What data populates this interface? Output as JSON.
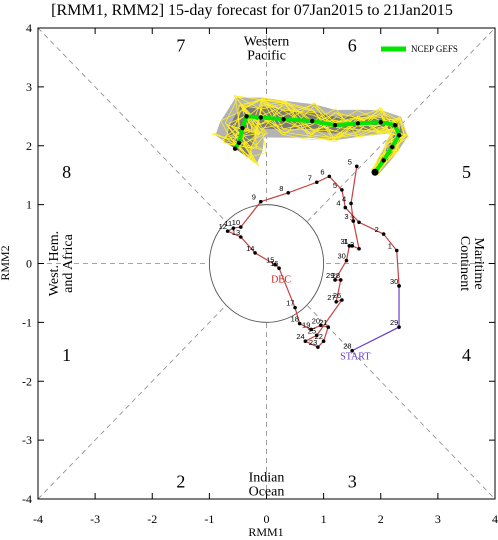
{
  "chart_data": {
    "type": "scatter",
    "title": "[RMM1, RMM2] 15-day forecast for 07Jan2015 to 21Jan2015",
    "xlabel": "RMM1",
    "ylabel": "RMM2",
    "xlim": [
      -4,
      4
    ],
    "ylim": [
      -4,
      4
    ],
    "xticks": [
      "-4",
      "-3",
      "-2",
      "-1",
      "0",
      "1",
      "2",
      "3",
      "4"
    ],
    "yticks": [
      "-4",
      "-3",
      "-2",
      "-1",
      "0",
      "1",
      "2",
      "3",
      "4"
    ],
    "grid": false,
    "legend": {
      "placement": "top-right",
      "entries": [
        "NCEP GEFS"
      ]
    },
    "phase_numbers": [
      {
        "label": "1",
        "x": -3.5,
        "y": -1.55
      },
      {
        "label": "2",
        "x": -1.5,
        "y": -3.7
      },
      {
        "label": "3",
        "x": 1.5,
        "y": -3.7
      },
      {
        "label": "4",
        "x": 3.5,
        "y": -1.55
      },
      {
        "label": "5",
        "x": 3.5,
        "y": 1.55
      },
      {
        "label": "6",
        "x": 1.5,
        "y": 3.7
      },
      {
        "label": "7",
        "x": -1.5,
        "y": 3.7
      },
      {
        "label": "8",
        "x": -3.5,
        "y": 1.55
      }
    ],
    "region_labels": [
      {
        "lines": [
          "Western",
          "Pacific"
        ],
        "x": 0,
        "y": 3.65,
        "rotate": 0
      },
      {
        "lines": [
          "Indian",
          "Ocean"
        ],
        "x": 0,
        "y": -3.75,
        "rotate": 0
      },
      {
        "lines": [
          "West. Hem.",
          "and Africa"
        ],
        "x": -3.6,
        "y": 0,
        "rotate": -90
      },
      {
        "lines": [
          "Maritime",
          "Continent"
        ],
        "x": 3.6,
        "y": 0,
        "rotate": 90
      }
    ],
    "observed_labels": {
      "start": "START",
      "dec": "DEC"
    },
    "colors": {
      "observed_purple": "#6a3dc8",
      "observed_red": "#c84040",
      "forecast_mean": "#00e600",
      "members": "#ffee22",
      "spread_outer": "#b3b3b3",
      "spread_inner": "#7a7a7a",
      "start_label": "#6a3dc8",
      "dec_label": "#cc2222"
    },
    "observed_purple": [
      {
        "label": "28",
        "x": 1.5,
        "y": -1.48
      },
      {
        "label": "29",
        "x": 2.32,
        "y": -1.08
      },
      {
        "label": "30",
        "x": 2.32,
        "y": -0.38
      }
    ],
    "observed_red": [
      {
        "label": "30",
        "x": 2.32,
        "y": -0.38
      },
      {
        "label": "1",
        "x": 2.28,
        "y": 0.22
      },
      {
        "label": "2",
        "x": 2.05,
        "y": 0.5
      },
      {
        "label": "3",
        "x": 1.62,
        "y": 0.7
      },
      {
        "label": "4",
        "x": 1.38,
        "y": 0.95
      },
      {
        "label": "5",
        "x": 1.32,
        "y": 1.25
      },
      {
        "label": "6",
        "x": 1.1,
        "y": 1.48
      },
      {
        "label": "7",
        "x": 0.88,
        "y": 1.38
      },
      {
        "label": "8",
        "x": 0.38,
        "y": 1.2
      },
      {
        "label": "9",
        "x": -0.1,
        "y": 1.05
      },
      {
        "label": "10",
        "x": -0.45,
        "y": 0.62
      },
      {
        "label": "11",
        "x": -0.58,
        "y": 0.6
      },
      {
        "label": "12",
        "x": -0.68,
        "y": 0.55
      },
      {
        "label": "13",
        "x": -0.45,
        "y": 0.45
      },
      {
        "label": "14",
        "x": -0.2,
        "y": 0.18
      },
      {
        "label": "15",
        "x": 0.15,
        "y": -0.02
      },
      {
        "label": "16",
        "x": 0.22,
        "y": -0.08
      },
      {
        "label": "17",
        "x": 0.5,
        "y": -0.75
      },
      {
        "label": "18",
        "x": 0.58,
        "y": -1.02
      },
      {
        "label": "19",
        "x": 0.78,
        "y": -1.12
      },
      {
        "label": "20",
        "x": 0.95,
        "y": -1.05
      },
      {
        "label": "21",
        "x": 1.08,
        "y": -1.08
      },
      {
        "label": "22",
        "x": 1.0,
        "y": -1.32
      },
      {
        "label": "23",
        "x": 0.9,
        "y": -1.42
      },
      {
        "label": "24",
        "x": 0.68,
        "y": -1.32
      },
      {
        "label": "25",
        "x": 0.88,
        "y": -1.22
      },
      {
        "label": "26",
        "x": 1.32,
        "y": -0.62
      },
      {
        "label": "27",
        "x": 1.22,
        "y": -0.65
      },
      {
        "label": "28",
        "x": 1.3,
        "y": -0.28
      },
      {
        "label": "29",
        "x": 1.2,
        "y": -0.28
      },
      {
        "label": "30",
        "x": 1.4,
        "y": 0.05
      },
      {
        "label": "31",
        "x": 1.45,
        "y": 0.3
      },
      {
        "label": "1",
        "x": 1.5,
        "y": 0.3
      },
      {
        "label": "2",
        "x": 1.62,
        "y": 0.25
      },
      {
        "label": "3",
        "x": 1.52,
        "y": 0.72
      },
      {
        "label": "4",
        "x": 1.48,
        "y": 1.02
      },
      {
        "label": "5",
        "x": 1.58,
        "y": 1.65
      }
    ],
    "forecast_mean": [
      {
        "x": 1.9,
        "y": 1.55
      },
      {
        "x": 2.05,
        "y": 1.75
      },
      {
        "x": 2.2,
        "y": 1.98
      },
      {
        "x": 2.32,
        "y": 2.18
      },
      {
        "x": 2.25,
        "y": 2.35
      },
      {
        "x": 2.0,
        "y": 2.4
      },
      {
        "x": 1.6,
        "y": 2.38
      },
      {
        "x": 1.2,
        "y": 2.35
      },
      {
        "x": 0.8,
        "y": 2.42
      },
      {
        "x": 0.3,
        "y": 2.45
      },
      {
        "x": -0.1,
        "y": 2.48
      },
      {
        "x": -0.35,
        "y": 2.5
      },
      {
        "x": -0.42,
        "y": 2.3
      },
      {
        "x": -0.48,
        "y": 2.05
      },
      {
        "x": -0.55,
        "y": 1.95
      }
    ]
  }
}
